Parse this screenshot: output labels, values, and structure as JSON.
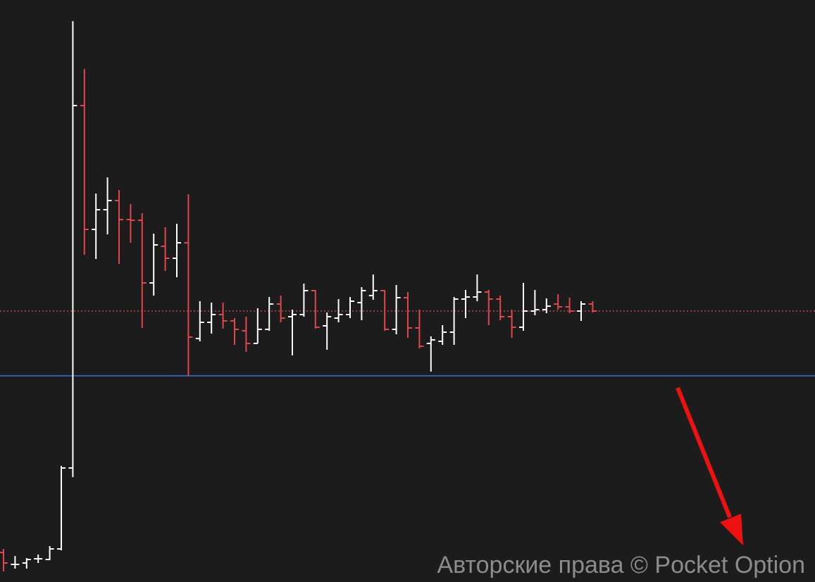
{
  "chart_data": {
    "type": "ohlc",
    "watermark": "Авторские права © Pocket Option",
    "up_color": "#ffffff",
    "down_color": "#e0474c",
    "ylim": [
      0,
      827
    ],
    "open": [
      42,
      25,
      27,
      33,
      32,
      47,
      162,
      677,
      501,
      529,
      542,
      515,
      514,
      425,
      477,
      460,
      482,
      346,
      369,
      380,
      371,
      357,
      339,
      359,
      395,
      377,
      380,
      414,
      364,
      375,
      380,
      397,
      407,
      414,
      359,
      404,
      361,
      339,
      342,
      355,
      402,
      405,
      412,
      402,
      377,
      362,
      385,
      387,
      395,
      391,
      385,
      395
    ],
    "high": [
      47,
      37,
      34,
      39,
      51,
      165,
      797,
      729,
      552,
      575,
      557,
      537,
      524,
      495,
      504,
      509,
      551,
      399,
      397,
      397,
      375,
      377,
      389,
      405,
      407,
      387,
      424,
      415,
      383,
      402,
      405,
      419,
      437,
      415,
      422,
      412,
      387,
      349,
      365,
      405,
      415,
      437,
      415,
      407,
      387,
      425,
      415,
      403,
      409,
      404,
      399,
      399
    ],
    "low": [
      15,
      19,
      19,
      27,
      31,
      45,
      149,
      465,
      459,
      494,
      452,
      482,
      361,
      407,
      442,
      433,
      293,
      342,
      353,
      360,
      337,
      327,
      339,
      357,
      369,
      322,
      377,
      360,
      330,
      369,
      375,
      372,
      401,
      357,
      352,
      347,
      332,
      299,
      337,
      337,
      375,
      399,
      365,
      372,
      347,
      357,
      379,
      382,
      387,
      382,
      371,
      383
    ],
    "close": [
      27,
      25,
      32,
      33,
      47,
      162,
      677,
      501,
      529,
      542,
      515,
      514,
      425,
      479,
      460,
      482,
      348,
      369,
      380,
      371,
      359,
      339,
      359,
      395,
      375,
      380,
      414,
      362,
      377,
      380,
      399,
      414,
      414,
      359,
      404,
      361,
      335,
      344,
      355,
      402,
      405,
      412,
      402,
      377,
      362,
      385,
      387,
      392,
      391,
      385,
      395,
      385
    ],
    "hlines": [
      {
        "value": 385,
        "color": "#d9534f",
        "style": "dotted"
      },
      {
        "value": 293,
        "color": "#3d6fe0",
        "style": "solid"
      }
    ]
  }
}
